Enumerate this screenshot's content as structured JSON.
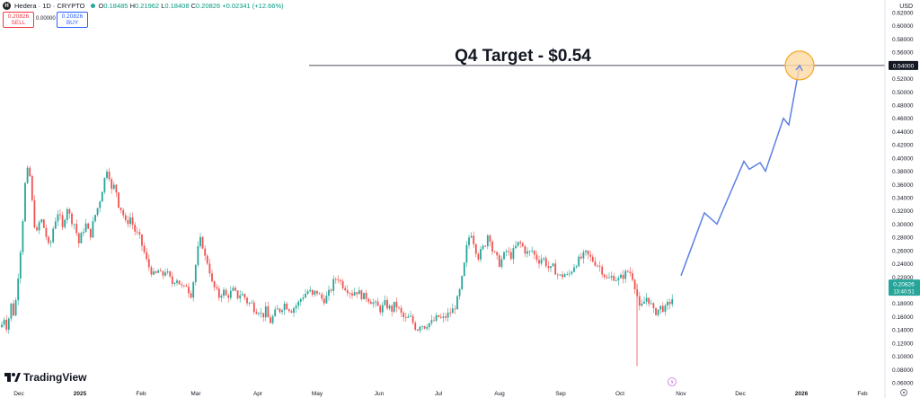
{
  "header": {
    "symbol_badge": "H",
    "title": "Hedera · 1D · CRYPTO",
    "open_label": "O",
    "open": "0.18485",
    "high_label": "H",
    "high": "0.21962",
    "low_label": "L",
    "low": "0.18408",
    "close_label": "C",
    "close": "0.20826",
    "change": "+0.02341 (+12.66%)"
  },
  "trade": {
    "sell_price": "0.20826",
    "sell_label": "SELL",
    "spread": "0.00000",
    "buy_price": "0.20826",
    "buy_label": "BUY"
  },
  "currency": "USD",
  "logo_text": "TradingView",
  "colors": {
    "up": "#26a69a",
    "down": "#ef5350",
    "projection": "#5b7fe6",
    "target_fill": "#ffd9a6",
    "target_stroke": "#f5a623"
  },
  "chart_data": {
    "type": "candlestick",
    "title": "Q4 Target - $0.54",
    "x_labels": [
      "Dec",
      "2025",
      "Feb",
      "Mar",
      "Apr",
      "May",
      "Jun",
      "Jul",
      "Aug",
      "Sep",
      "Oct",
      "Nov",
      "Dec",
      "2026",
      "Feb"
    ],
    "y_ticks": [
      "0.06000",
      "0.08000",
      "0.10000",
      "0.12000",
      "0.14000",
      "0.16000",
      "0.18000",
      "0.20000",
      "0.22000",
      "0.24000",
      "0.26000",
      "0.28000",
      "0.30000",
      "0.32000",
      "0.34000",
      "0.36000",
      "0.38000",
      "0.40000",
      "0.42000",
      "0.44000",
      "0.46000",
      "0.48000",
      "0.50000",
      "0.52000",
      "0.54000",
      "0.56000",
      "0.58000",
      "0.60000",
      "0.62000"
    ],
    "ylim": [
      0.05,
      0.62
    ],
    "last_price_label": "0.20826",
    "countdown_label": "13:40:51",
    "target_price_label": "0.54000",
    "target_value": 0.54,
    "price_path": [
      [
        0,
        0.14
      ],
      [
        5,
        0.16
      ],
      [
        8,
        0.14
      ],
      [
        12,
        0.18
      ],
      [
        16,
        0.16
      ],
      [
        20,
        0.22
      ],
      [
        24,
        0.28
      ],
      [
        28,
        0.36
      ],
      [
        32,
        0.39
      ],
      [
        36,
        0.33
      ],
      [
        40,
        0.28
      ],
      [
        45,
        0.31
      ],
      [
        50,
        0.29
      ],
      [
        55,
        0.26
      ],
      [
        60,
        0.3
      ],
      [
        65,
        0.32
      ],
      [
        70,
        0.29
      ],
      [
        74,
        0.33
      ],
      [
        78,
        0.31
      ],
      [
        83,
        0.3
      ],
      [
        88,
        0.27
      ],
      [
        92,
        0.29
      ],
      [
        96,
        0.3
      ],
      [
        100,
        0.28
      ],
      [
        105,
        0.31
      ],
      [
        110,
        0.33
      ],
      [
        115,
        0.36
      ],
      [
        120,
        0.39
      ],
      [
        124,
        0.35
      ],
      [
        128,
        0.36
      ],
      [
        132,
        0.33
      ],
      [
        136,
        0.32
      ],
      [
        140,
        0.3
      ],
      [
        145,
        0.31
      ],
      [
        150,
        0.29
      ],
      [
        155,
        0.28
      ],
      [
        160,
        0.26
      ],
      [
        164,
        0.24
      ],
      [
        168,
        0.23
      ],
      [
        172,
        0.22
      ],
      [
        176,
        0.23
      ],
      [
        180,
        0.22
      ],
      [
        184,
        0.23
      ],
      [
        188,
        0.22
      ],
      [
        192,
        0.21
      ],
      [
        196,
        0.22
      ],
      [
        200,
        0.21
      ],
      [
        204,
        0.2
      ],
      [
        208,
        0.21
      ],
      [
        212,
        0.19
      ],
      [
        216,
        0.22
      ],
      [
        220,
        0.26
      ],
      [
        224,
        0.28
      ],
      [
        228,
        0.25
      ],
      [
        232,
        0.24
      ],
      [
        236,
        0.21
      ],
      [
        240,
        0.2
      ],
      [
        244,
        0.19
      ],
      [
        248,
        0.2
      ],
      [
        252,
        0.19
      ],
      [
        256,
        0.195
      ],
      [
        260,
        0.2
      ],
      [
        264,
        0.19
      ],
      [
        268,
        0.195
      ],
      [
        272,
        0.19
      ],
      [
        276,
        0.18
      ],
      [
        280,
        0.18
      ],
      [
        284,
        0.17
      ],
      [
        288,
        0.17
      ],
      [
        292,
        0.16
      ],
      [
        296,
        0.17
      ],
      [
        300,
        0.15
      ],
      [
        304,
        0.16
      ],
      [
        308,
        0.17
      ],
      [
        312,
        0.17
      ],
      [
        316,
        0.18
      ],
      [
        320,
        0.175
      ],
      [
        324,
        0.17
      ],
      [
        328,
        0.175
      ],
      [
        332,
        0.18
      ],
      [
        336,
        0.19
      ],
      [
        340,
        0.195
      ],
      [
        344,
        0.2
      ],
      [
        348,
        0.19
      ],
      [
        352,
        0.2
      ],
      [
        356,
        0.19
      ],
      [
        360,
        0.185
      ],
      [
        364,
        0.19
      ],
      [
        368,
        0.2
      ],
      [
        372,
        0.215
      ],
      [
        376,
        0.22
      ],
      [
        380,
        0.21
      ],
      [
        384,
        0.205
      ],
      [
        388,
        0.2
      ],
      [
        392,
        0.195
      ],
      [
        396,
        0.2
      ],
      [
        400,
        0.195
      ],
      [
        404,
        0.19
      ],
      [
        408,
        0.19
      ],
      [
        412,
        0.185
      ],
      [
        416,
        0.18
      ],
      [
        420,
        0.175
      ],
      [
        424,
        0.17
      ],
      [
        428,
        0.18
      ],
      [
        432,
        0.175
      ],
      [
        436,
        0.17
      ],
      [
        440,
        0.18
      ],
      [
        444,
        0.17
      ],
      [
        448,
        0.16
      ],
      [
        452,
        0.155
      ],
      [
        456,
        0.16
      ],
      [
        460,
        0.15
      ],
      [
        464,
        0.14
      ],
      [
        468,
        0.15
      ],
      [
        472,
        0.145
      ],
      [
        476,
        0.15
      ],
      [
        480,
        0.15
      ],
      [
        484,
        0.155
      ],
      [
        488,
        0.16
      ],
      [
        492,
        0.155
      ],
      [
        496,
        0.16
      ],
      [
        500,
        0.165
      ],
      [
        504,
        0.17
      ],
      [
        508,
        0.18
      ],
      [
        512,
        0.2
      ],
      [
        516,
        0.23
      ],
      [
        520,
        0.27
      ],
      [
        524,
        0.29
      ],
      [
        528,
        0.27
      ],
      [
        532,
        0.25
      ],
      [
        536,
        0.26
      ],
      [
        540,
        0.27
      ],
      [
        544,
        0.29
      ],
      [
        548,
        0.26
      ],
      [
        552,
        0.25
      ],
      [
        556,
        0.24
      ],
      [
        560,
        0.25
      ],
      [
        564,
        0.26
      ],
      [
        568,
        0.25
      ],
      [
        572,
        0.26
      ],
      [
        576,
        0.27
      ],
      [
        580,
        0.27
      ],
      [
        584,
        0.26
      ],
      [
        588,
        0.255
      ],
      [
        592,
        0.26
      ],
      [
        596,
        0.25
      ],
      [
        600,
        0.245
      ],
      [
        604,
        0.25
      ],
      [
        608,
        0.24
      ],
      [
        612,
        0.23
      ],
      [
        616,
        0.235
      ],
      [
        620,
        0.225
      ],
      [
        624,
        0.22
      ],
      [
        628,
        0.225
      ],
      [
        632,
        0.22
      ],
      [
        636,
        0.23
      ],
      [
        640,
        0.24
      ],
      [
        644,
        0.245
      ],
      [
        648,
        0.25
      ],
      [
        652,
        0.255
      ],
      [
        656,
        0.25
      ],
      [
        660,
        0.245
      ],
      [
        664,
        0.24
      ],
      [
        668,
        0.235
      ],
      [
        672,
        0.225
      ],
      [
        676,
        0.215
      ],
      [
        680,
        0.22
      ],
      [
        684,
        0.22
      ],
      [
        688,
        0.215
      ],
      [
        692,
        0.22
      ],
      [
        696,
        0.225
      ],
      [
        700,
        0.23
      ],
      [
        704,
        0.22
      ],
      [
        708,
        0.2
      ],
      [
        712,
        0.17
      ],
      [
        716,
        0.18
      ],
      [
        720,
        0.19
      ],
      [
        724,
        0.18
      ],
      [
        728,
        0.165
      ],
      [
        732,
        0.17
      ],
      [
        736,
        0.175
      ],
      [
        740,
        0.17
      ],
      [
        744,
        0.18
      ],
      [
        748,
        0.185
      ],
      [
        750,
        0.208
      ]
    ],
    "projection": [
      [
        758,
        0.222
      ],
      [
        784,
        0.317
      ],
      [
        798,
        0.3
      ],
      [
        828,
        0.395
      ],
      [
        834,
        0.383
      ],
      [
        846,
        0.393
      ],
      [
        852,
        0.38
      ],
      [
        872,
        0.46
      ],
      [
        878,
        0.45
      ],
      [
        890,
        0.54
      ]
    ]
  }
}
